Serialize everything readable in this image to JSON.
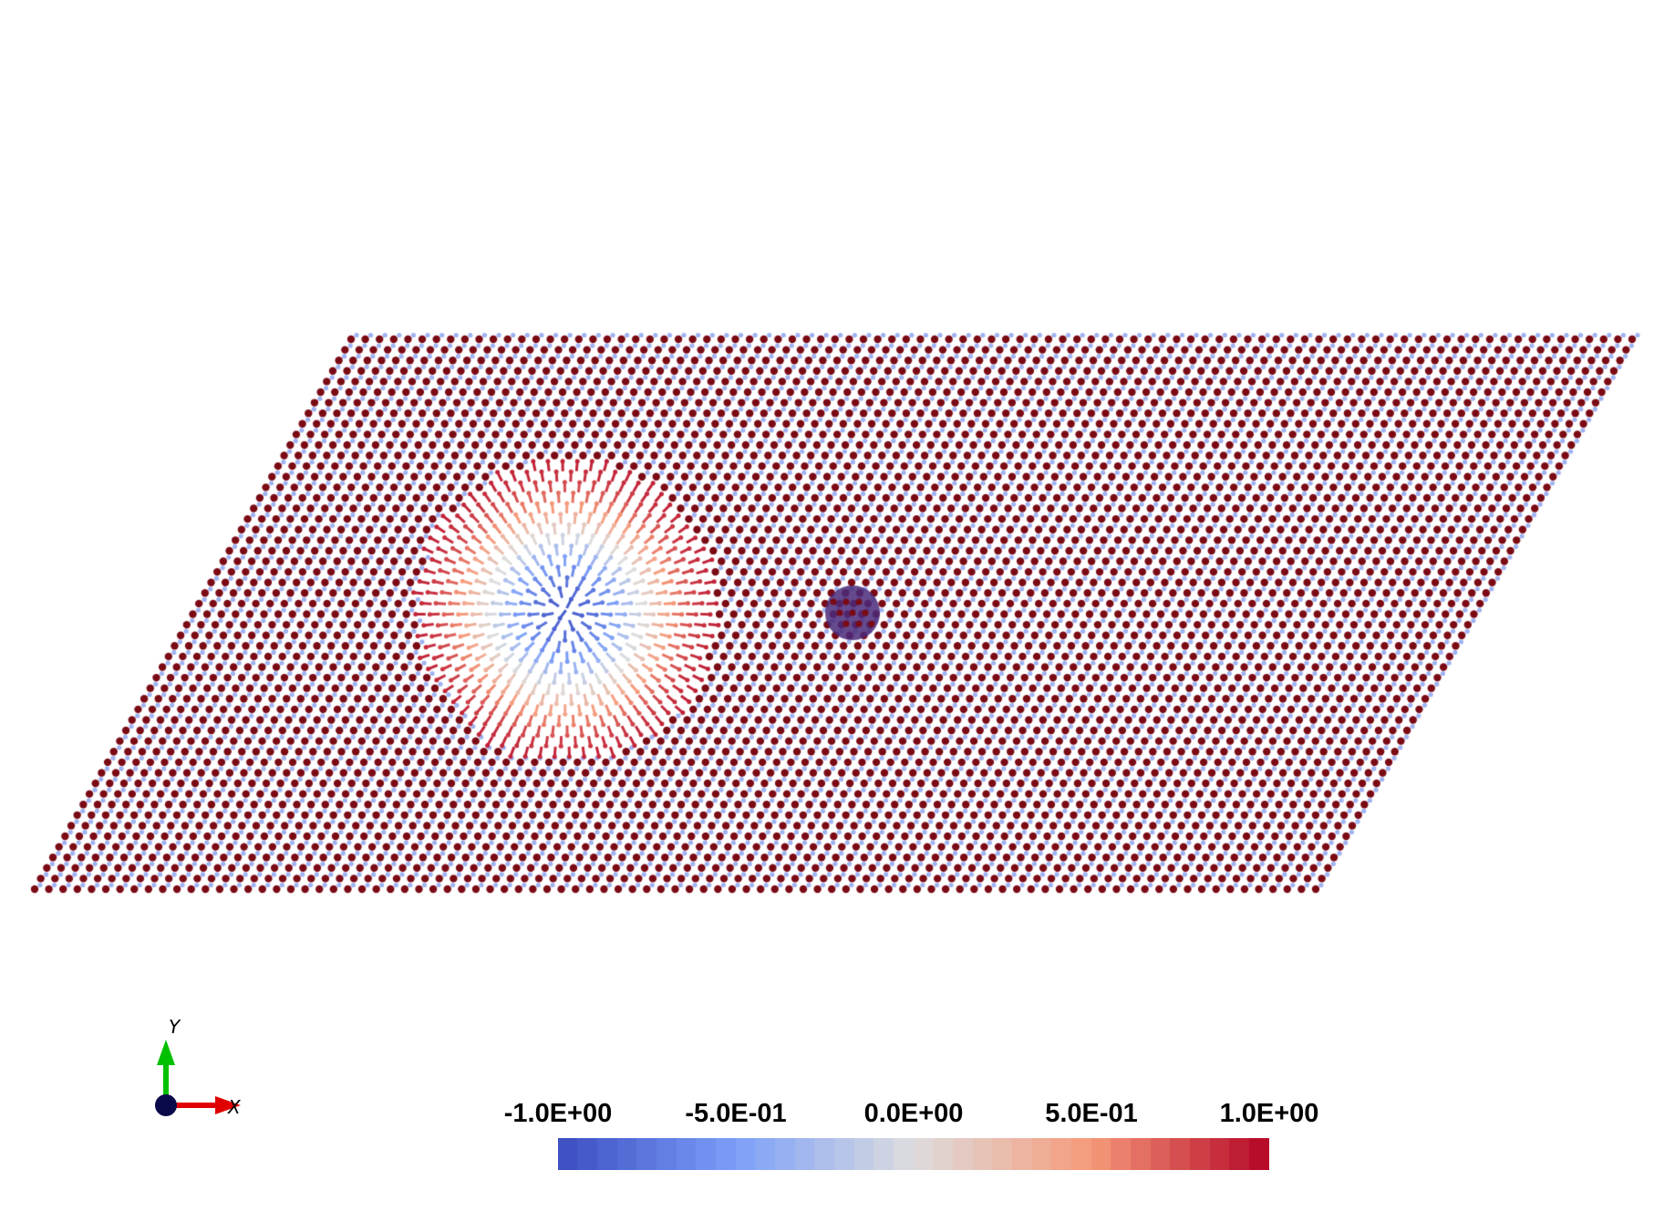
{
  "scene": {
    "background": "#ffffff",
    "description_icon": "spin-lattice-skyrmion",
    "spin_up_color": "#7a0a14",
    "spin_down_color": "#9fb2f2",
    "skyrmion_core_color": "#f0f0f0",
    "impurity_color": "#4a2a7a"
  },
  "axes": {
    "y_label": "Y",
    "x_label": "X",
    "x_color": "#e00000",
    "y_color": "#00c000",
    "origin_color": "#0a0a4a"
  },
  "colorbar": {
    "min": -1.0,
    "max": 1.0,
    "colormap": "coolwarm",
    "low_color": "#3b4cc0",
    "mid_color": "#dddddd",
    "high_color": "#b40426",
    "ticks": [
      "-1.0E+00",
      "-5.0E-01",
      "0.0E+00",
      "5.0E-01",
      "1.0E+00"
    ]
  }
}
